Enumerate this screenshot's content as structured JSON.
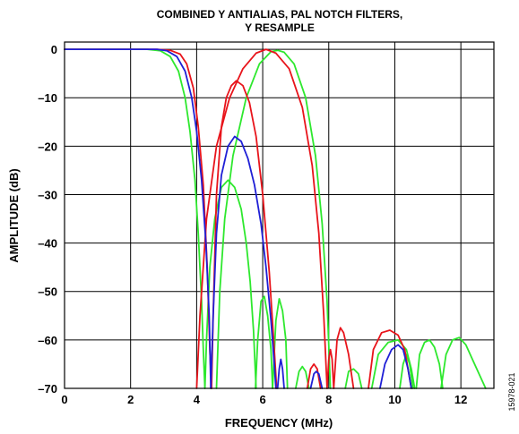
{
  "chart_data": {
    "type": "line",
    "title_line1": "COMBINED Y ANTIALIAS, PAL NOTCH FILTERS,",
    "title_line2": "Y RESAMPLE",
    "xlabel": "FREQUENCY (MHz)",
    "ylabel": "AMPLITUDE (dB)",
    "xlim": [
      0,
      13.0
    ],
    "ylim": [
      -70,
      1.5
    ],
    "xticks": [
      0,
      2,
      4,
      6,
      8,
      10,
      12
    ],
    "xtick_labels": [
      "0",
      "2",
      "4",
      "6",
      "8",
      "10",
      "12"
    ],
    "yticks": [
      0,
      -10,
      -20,
      -30,
      -40,
      -50,
      -60,
      -70
    ],
    "ytick_labels": [
      "0",
      "–10",
      "–20",
      "–30",
      "–40",
      "–50",
      "–60",
      "–70"
    ],
    "grid": true,
    "figure_id": "15978-021",
    "colors": {
      "red": "#e8141b",
      "blue": "#1f1fd6",
      "green": "#2ee82e"
    },
    "series": [
      {
        "color": "red",
        "points": [
          [
            0,
            0
          ],
          [
            2,
            0
          ],
          [
            2.8,
            0
          ],
          [
            3.2,
            -0.2
          ],
          [
            3.5,
            -1
          ],
          [
            3.7,
            -3
          ],
          [
            3.9,
            -8
          ],
          [
            4.05,
            -16
          ],
          [
            4.2,
            -28
          ],
          [
            4.32,
            -45
          ],
          [
            4.4,
            -62
          ],
          [
            4.45,
            -70
          ]
        ]
      },
      {
        "color": "red",
        "points": [
          [
            4.45,
            -70
          ],
          [
            4.5,
            -55
          ],
          [
            4.6,
            -30
          ],
          [
            4.75,
            -16
          ],
          [
            4.9,
            -10
          ],
          [
            5.05,
            -7.5
          ],
          [
            5.2,
            -6.5
          ],
          [
            5.4,
            -7.5
          ],
          [
            5.6,
            -11
          ],
          [
            5.8,
            -18
          ],
          [
            6.0,
            -30
          ],
          [
            6.2,
            -46
          ],
          [
            6.35,
            -62
          ],
          [
            6.42,
            -70
          ]
        ]
      },
      {
        "color": "red",
        "points": [
          [
            4.0,
            -70
          ],
          [
            4.1,
            -55
          ],
          [
            4.3,
            -35
          ],
          [
            4.6,
            -20
          ],
          [
            5.0,
            -10
          ],
          [
            5.4,
            -4
          ],
          [
            5.8,
            -0.8
          ],
          [
            6.1,
            0
          ],
          [
            6.4,
            -0.8
          ],
          [
            6.8,
            -4
          ],
          [
            7.2,
            -12
          ],
          [
            7.5,
            -24
          ],
          [
            7.7,
            -38
          ],
          [
            7.85,
            -55
          ],
          [
            7.95,
            -70
          ]
        ]
      },
      {
        "color": "red",
        "points": [
          [
            7.95,
            -70
          ],
          [
            8.0,
            -64
          ],
          [
            8.05,
            -62
          ],
          [
            8.1,
            -64
          ],
          [
            8.15,
            -70
          ]
        ]
      },
      {
        "color": "red",
        "points": [
          [
            8.15,
            -70
          ],
          [
            8.25,
            -60
          ],
          [
            8.35,
            -57.5
          ],
          [
            8.45,
            -58.5
          ],
          [
            8.6,
            -63
          ],
          [
            8.75,
            -70
          ]
        ]
      },
      {
        "color": "red",
        "points": [
          [
            7.35,
            -70
          ],
          [
            7.45,
            -66
          ],
          [
            7.55,
            -65
          ],
          [
            7.65,
            -66
          ],
          [
            7.75,
            -70
          ]
        ]
      },
      {
        "color": "red",
        "points": [
          [
            9.2,
            -70
          ],
          [
            9.35,
            -62
          ],
          [
            9.6,
            -58.5
          ],
          [
            9.85,
            -58
          ],
          [
            10.1,
            -59
          ],
          [
            10.3,
            -62
          ],
          [
            10.5,
            -70
          ]
        ]
      },
      {
        "color": "blue",
        "points": [
          [
            0,
            0
          ],
          [
            2,
            0
          ],
          [
            2.8,
            0
          ],
          [
            3.1,
            -0.3
          ],
          [
            3.4,
            -1.5
          ],
          [
            3.65,
            -4.5
          ],
          [
            3.85,
            -10
          ],
          [
            4.0,
            -17
          ],
          [
            4.15,
            -27
          ],
          [
            4.28,
            -40
          ],
          [
            4.38,
            -55
          ],
          [
            4.43,
            -70
          ]
        ]
      },
      {
        "color": "blue",
        "points": [
          [
            4.43,
            -70
          ],
          [
            4.5,
            -55
          ],
          [
            4.6,
            -38
          ],
          [
            4.75,
            -26
          ],
          [
            4.95,
            -20
          ],
          [
            5.15,
            -18
          ],
          [
            5.35,
            -19
          ],
          [
            5.55,
            -22.5
          ],
          [
            5.75,
            -28
          ],
          [
            5.95,
            -36
          ],
          [
            6.1,
            -45
          ],
          [
            6.25,
            -56
          ],
          [
            6.35,
            -65
          ],
          [
            6.4,
            -70
          ]
        ]
      },
      {
        "color": "blue",
        "points": [
          [
            6.45,
            -70
          ],
          [
            6.5,
            -66
          ],
          [
            6.55,
            -64
          ],
          [
            6.6,
            -66
          ],
          [
            6.65,
            -70
          ]
        ]
      },
      {
        "color": "blue",
        "points": [
          [
            7.45,
            -70
          ],
          [
            7.55,
            -67
          ],
          [
            7.62,
            -66.5
          ],
          [
            7.7,
            -67
          ],
          [
            7.8,
            -70
          ]
        ]
      },
      {
        "color": "blue",
        "points": [
          [
            9.55,
            -70
          ],
          [
            9.7,
            -65
          ],
          [
            9.9,
            -62
          ],
          [
            10.1,
            -61
          ],
          [
            10.25,
            -62
          ],
          [
            10.4,
            -66
          ],
          [
            10.5,
            -70
          ]
        ]
      },
      {
        "color": "green",
        "points": [
          [
            0,
            0
          ],
          [
            2,
            0
          ],
          [
            2.5,
            0
          ],
          [
            2.9,
            -0.3
          ],
          [
            3.2,
            -1.5
          ],
          [
            3.45,
            -4.5
          ],
          [
            3.65,
            -10
          ],
          [
            3.8,
            -17
          ],
          [
            3.95,
            -27
          ],
          [
            4.05,
            -38
          ],
          [
            4.15,
            -52
          ],
          [
            4.2,
            -62
          ],
          [
            4.25,
            -70
          ]
        ]
      },
      {
        "color": "green",
        "points": [
          [
            4.25,
            -70
          ],
          [
            4.3,
            -60
          ],
          [
            4.4,
            -45
          ],
          [
            4.55,
            -35
          ],
          [
            4.75,
            -28.5
          ],
          [
            4.95,
            -27
          ],
          [
            5.15,
            -28.5
          ],
          [
            5.35,
            -33
          ],
          [
            5.5,
            -40
          ],
          [
            5.62,
            -48
          ],
          [
            5.72,
            -58
          ],
          [
            5.8,
            -70
          ]
        ]
      },
      {
        "color": "green",
        "points": [
          [
            5.78,
            -70
          ],
          [
            5.85,
            -60
          ],
          [
            5.95,
            -52
          ],
          [
            6.05,
            -51
          ],
          [
            6.15,
            -55
          ],
          [
            6.25,
            -62
          ],
          [
            6.3,
            -70
          ]
        ]
      },
      {
        "color": "green",
        "points": [
          [
            6.3,
            -70
          ],
          [
            6.4,
            -56
          ],
          [
            6.5,
            -51.5
          ],
          [
            6.6,
            -54
          ],
          [
            6.7,
            -60
          ],
          [
            6.75,
            -70
          ]
        ]
      },
      {
        "color": "green",
        "points": [
          [
            4.6,
            -70
          ],
          [
            4.7,
            -50
          ],
          [
            4.85,
            -35
          ],
          [
            5.1,
            -22
          ],
          [
            5.5,
            -10
          ],
          [
            5.9,
            -3
          ],
          [
            6.25,
            -0.5
          ],
          [
            6.45,
            -0.2
          ],
          [
            6.65,
            -0.6
          ],
          [
            6.95,
            -3
          ],
          [
            7.3,
            -10
          ],
          [
            7.6,
            -22
          ],
          [
            7.8,
            -36
          ],
          [
            7.95,
            -52
          ],
          [
            8.05,
            -70
          ]
        ]
      },
      {
        "color": "green",
        "points": [
          [
            7.0,
            -70
          ],
          [
            7.1,
            -66.5
          ],
          [
            7.2,
            -65.5
          ],
          [
            7.3,
            -66.5
          ],
          [
            7.4,
            -70
          ]
        ]
      },
      {
        "color": "green",
        "points": [
          [
            8.5,
            -70
          ],
          [
            8.6,
            -66.5
          ],
          [
            8.75,
            -66
          ],
          [
            8.9,
            -67
          ],
          [
            9.0,
            -70
          ]
        ]
      },
      {
        "color": "green",
        "points": [
          [
            9.3,
            -70
          ],
          [
            9.5,
            -63
          ],
          [
            9.8,
            -60.5
          ],
          [
            10.1,
            -60
          ],
          [
            10.35,
            -62
          ],
          [
            10.5,
            -66
          ],
          [
            10.6,
            -70
          ]
        ]
      },
      {
        "color": "green",
        "points": [
          [
            10.15,
            -70
          ],
          [
            10.25,
            -65
          ],
          [
            10.35,
            -63
          ],
          [
            10.45,
            -65
          ],
          [
            10.55,
            -70
          ]
        ]
      },
      {
        "color": "green",
        "points": [
          [
            10.65,
            -70
          ],
          [
            10.75,
            -63
          ],
          [
            10.9,
            -60.5
          ],
          [
            11.05,
            -60
          ],
          [
            11.2,
            -61.5
          ],
          [
            11.35,
            -65
          ],
          [
            11.45,
            -70
          ]
        ]
      },
      {
        "color": "green",
        "points": [
          [
            11.4,
            -70
          ],
          [
            11.55,
            -63
          ],
          [
            11.75,
            -60
          ],
          [
            11.95,
            -59.5
          ],
          [
            12.15,
            -61
          ],
          [
            12.35,
            -64
          ],
          [
            12.55,
            -67
          ],
          [
            12.75,
            -70
          ]
        ]
      }
    ]
  }
}
